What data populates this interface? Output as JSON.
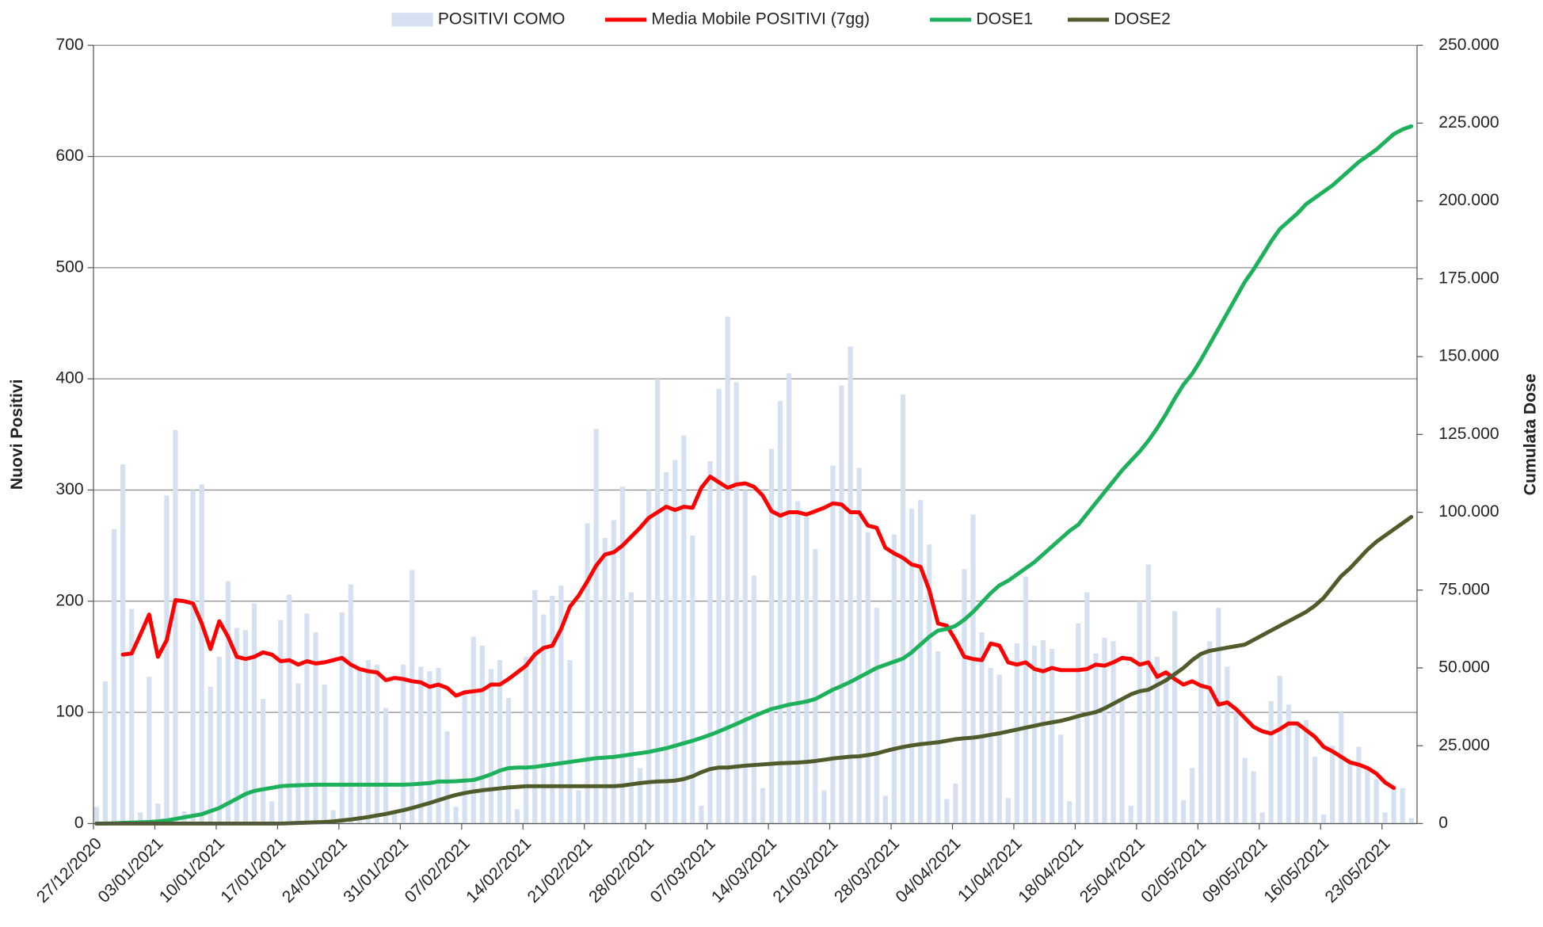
{
  "chart_data": {
    "type": "combo",
    "y_label": "Nuovi Positivi",
    "y2_label": "Cumulata Dose",
    "ylim": [
      0,
      700
    ],
    "yticks": [
      0,
      100,
      200,
      300,
      400,
      500,
      600,
      700
    ],
    "y2lim": [
      0,
      250000
    ],
    "y2ticks": [
      0,
      {
        "value": 25000,
        "label": "25.000"
      },
      {
        "value": 50000,
        "label": "50.000"
      },
      {
        "value": 75000,
        "label": "75.000"
      },
      {
        "value": 100000,
        "label": "100.000"
      },
      {
        "value": 125000,
        "label": "125.000"
      },
      {
        "value": 150000,
        "label": "150.000"
      },
      {
        "value": 175000,
        "label": "175.000"
      },
      {
        "value": 200000,
        "label": "200.000"
      },
      {
        "value": 225000,
        "label": "225.000"
      },
      {
        "value": 250000,
        "label": "250.000"
      }
    ],
    "grid": true,
    "legend": "top",
    "categories": [
      "27/12/2020",
      null,
      null,
      null,
      null,
      null,
      null,
      "03/01/2021",
      null,
      null,
      null,
      null,
      null,
      null,
      "10/01/2021",
      null,
      null,
      null,
      null,
      null,
      null,
      "17/01/2021",
      null,
      null,
      null,
      null,
      null,
      null,
      "24/01/2021",
      null,
      null,
      null,
      null,
      null,
      null,
      "31/01/2021",
      null,
      null,
      null,
      null,
      null,
      null,
      "07/02/2021",
      null,
      null,
      null,
      null,
      null,
      null,
      "14/02/2021",
      null,
      null,
      null,
      null,
      null,
      null,
      "21/02/2021",
      null,
      null,
      null,
      null,
      null,
      null,
      "28/02/2021",
      null,
      null,
      null,
      null,
      null,
      null,
      "07/03/2021",
      null,
      null,
      null,
      null,
      null,
      null,
      "14/03/2021",
      null,
      null,
      null,
      null,
      null,
      null,
      "21/03/2021",
      null,
      null,
      null,
      null,
      null,
      null,
      "28/03/2021",
      null,
      null,
      null,
      null,
      null,
      null,
      "04/04/2021",
      null,
      null,
      null,
      null,
      null,
      null,
      "11/04/2021",
      null,
      null,
      null,
      null,
      null,
      null,
      "18/04/2021",
      null,
      null,
      null,
      null,
      null,
      null,
      "25/04/2021",
      null,
      null,
      null,
      null,
      null,
      null,
      "02/05/2021",
      null,
      null,
      null,
      null,
      null,
      null,
      "09/05/2021",
      null,
      null,
      null,
      null,
      null,
      null,
      "16/05/2021",
      null,
      null,
      null,
      null,
      null,
      null,
      "23/05/2021",
      null,
      null,
      null
    ],
    "series": [
      {
        "name": "POSITIVI COMO",
        "type": "bar",
        "color": "#d5e0f0",
        "values": [
          15,
          128,
          265,
          323,
          193,
          10,
          132,
          18,
          295,
          354,
          11,
          300,
          305,
          123,
          150,
          218,
          176,
          174,
          198,
          112,
          20,
          183,
          206,
          126,
          189,
          172,
          125,
          12,
          190,
          215,
          140,
          147,
          143,
          104,
          10,
          143,
          228,
          141,
          137,
          140,
          83,
          15,
          120,
          168,
          160,
          139,
          147,
          113,
          13,
          150,
          210,
          188,
          205,
          214,
          147,
          30,
          270,
          355,
          257,
          273,
          303,
          208,
          50,
          300,
          400,
          316,
          327,
          349,
          259,
          16,
          326,
          391,
          456,
          397,
          300,
          223,
          32,
          337,
          380,
          405,
          290,
          276,
          247,
          30,
          322,
          394,
          429,
          320,
          262,
          194,
          25,
          260,
          386,
          283,
          291,
          251,
          155,
          22,
          36,
          229,
          278,
          172,
          140,
          134,
          23,
          162,
          222,
          160,
          165,
          157,
          80,
          20,
          180,
          208,
          153,
          167,
          164,
          110,
          16,
          200,
          233,
          150,
          136,
          191,
          21,
          50,
          150,
          164,
          194,
          141,
          103,
          59,
          47,
          10,
          110,
          133,
          107,
          90,
          93,
          60,
          8,
          70,
          100,
          56,
          69,
          50,
          40,
          10,
          35,
          32,
          5
        ]
      },
      {
        "name": "Media Mobile POSITIVI (7gg)",
        "type": "line",
        "color": "#ff0000",
        "values": [
          null,
          null,
          null,
          152,
          153,
          170,
          188,
          150,
          165,
          201,
          200,
          198,
          180,
          157,
          182,
          168,
          150,
          148,
          150,
          154,
          152,
          146,
          147,
          143,
          146,
          144,
          145,
          147,
          149,
          143,
          139,
          137,
          136,
          129,
          131,
          130,
          128,
          127,
          123,
          125,
          122,
          115,
          118,
          119,
          120,
          125,
          125,
          130,
          136,
          142,
          152,
          158,
          160,
          175,
          195,
          205,
          218,
          232,
          242,
          244,
          250,
          258,
          266,
          275,
          280,
          285,
          282,
          285,
          284,
          302,
          312,
          307,
          302,
          305,
          306,
          303,
          295,
          281,
          277,
          280,
          280,
          278,
          281,
          284,
          288,
          287,
          280,
          280,
          268,
          266,
          248,
          243,
          239,
          233,
          231,
          210,
          180,
          178,
          165,
          150,
          148,
          147,
          162,
          160,
          145,
          143,
          145,
          139,
          137,
          140,
          138,
          138,
          138,
          139,
          143,
          142,
          145,
          149,
          148,
          143,
          145,
          132,
          136,
          130,
          125,
          128,
          124,
          122,
          107,
          109,
          103,
          95,
          87,
          83,
          81,
          85,
          90,
          90,
          84,
          78,
          69,
          65,
          60,
          55,
          53,
          50,
          45,
          37,
          32,
          null,
          null
        ]
      },
      {
        "name": "DOSE1",
        "type": "line",
        "axis": "y2",
        "color": "#1cb15a",
        "values": [
          0,
          0,
          100,
          200,
          300,
          400,
          500,
          700,
          1000,
          1500,
          2000,
          2500,
          3000,
          4000,
          5000,
          6500,
          8000,
          9500,
          10500,
          11000,
          11500,
          12000,
          12200,
          12300,
          12400,
          12500,
          12500,
          12500,
          12500,
          12500,
          12500,
          12500,
          12500,
          12500,
          12500,
          12500,
          12600,
          12800,
          13000,
          13500,
          13500,
          13600,
          13800,
          14000,
          14800,
          15800,
          17000,
          17800,
          18000,
          18000,
          18200,
          18600,
          19000,
          19400,
          19800,
          20200,
          20600,
          21000,
          21200,
          21400,
          21800,
          22200,
          22600,
          23000,
          23600,
          24200,
          25000,
          25800,
          26600,
          27500,
          28500,
          29600,
          30800,
          32000,
          33300,
          34500,
          35700,
          36800,
          37500,
          38200,
          38700,
          39200,
          40000,
          41500,
          43000,
          44200,
          45500,
          47000,
          48500,
          50000,
          51000,
          52000,
          53000,
          55000,
          57500,
          60000,
          62000,
          62500,
          63500,
          65500,
          68000,
          71000,
          74000,
          76500,
          78000,
          80000,
          82000,
          84000,
          86500,
          89000,
          91500,
          94000,
          96000,
          99500,
          103000,
          106500,
          110000,
          113500,
          116500,
          119500,
          123000,
          127000,
          131500,
          136500,
          141000,
          144500,
          149000,
          154000,
          159000,
          164000,
          169000,
          174000,
          178000,
          182500,
          187000,
          191000,
          193500,
          196000,
          199000,
          201000,
          203000,
          205000,
          207500,
          210000,
          212500,
          214500,
          216500,
          219000,
          221500,
          223000,
          224000
        ]
      },
      {
        "name": "DOSE2",
        "type": "line",
        "axis": "y2",
        "color": "#505b2b",
        "values": [
          0,
          0,
          0,
          0,
          0,
          0,
          0,
          0,
          0,
          0,
          0,
          0,
          0,
          0,
          0,
          0,
          0,
          0,
          0,
          0,
          0,
          0,
          100,
          200,
          300,
          400,
          500,
          700,
          1000,
          1300,
          1700,
          2100,
          2600,
          3100,
          3700,
          4300,
          5000,
          5800,
          6600,
          7500,
          8400,
          9200,
          9800,
          10300,
          10700,
          11000,
          11300,
          11600,
          11800,
          12000,
          12000,
          12000,
          12000,
          12000,
          12000,
          12000,
          12000,
          12000,
          12000,
          12000,
          12200,
          12600,
          13000,
          13300,
          13500,
          13600,
          13800,
          14300,
          15200,
          16500,
          17500,
          18000,
          18000,
          18300,
          18600,
          18800,
          19000,
          19200,
          19400,
          19500,
          19600,
          19800,
          20100,
          20500,
          20900,
          21200,
          21500,
          21600,
          22000,
          22500,
          23300,
          24000,
          24600,
          25100,
          25500,
          25800,
          26100,
          26600,
          27100,
          27400,
          27600,
          28000,
          28500,
          29000,
          29600,
          30200,
          30800,
          31400,
          32000,
          32500,
          33000,
          33700,
          34500,
          35200,
          35800,
          37000,
          38500,
          40000,
          41500,
          42500,
          43000,
          44500,
          46000,
          48000,
          50000,
          52500,
          54500,
          55500,
          56000,
          56500,
          57000,
          57500,
          59000,
          60500,
          62000,
          63500,
          65000,
          66500,
          68000,
          70000,
          72500,
          76000,
          79500,
          82000,
          85000,
          88000,
          90500,
          92500,
          94500,
          96500,
          98500
        ]
      }
    ]
  }
}
